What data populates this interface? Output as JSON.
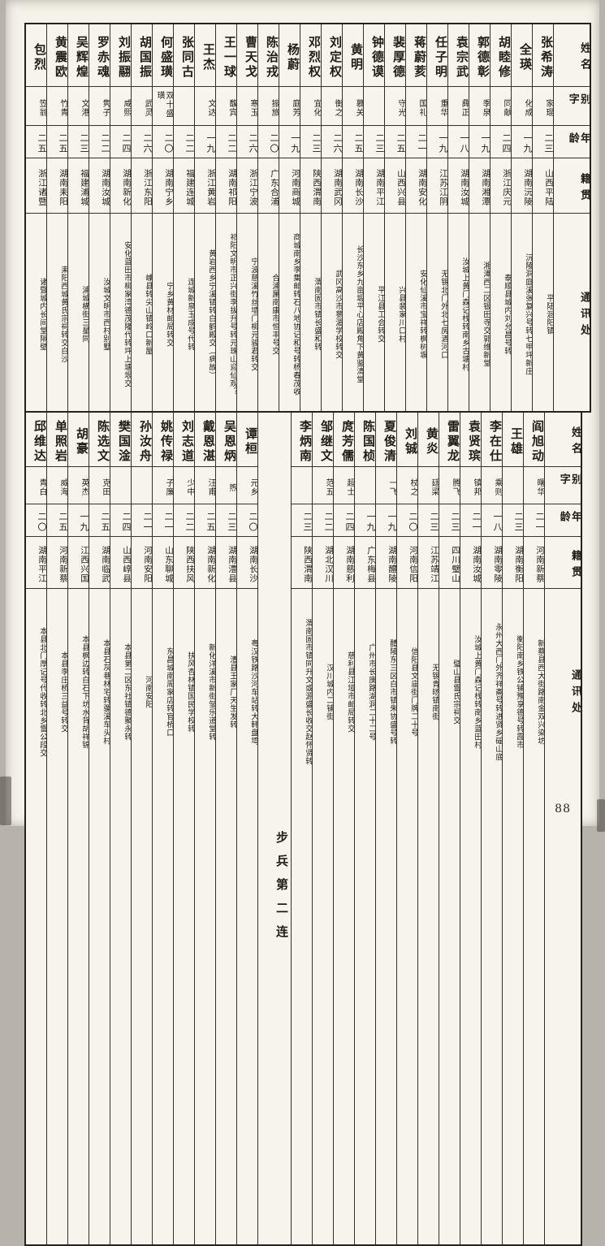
{
  "page_number": "88",
  "headers": {
    "name": "姓名",
    "courtesy": "别字",
    "age": "年龄",
    "native": "籍贯",
    "address": "通讯处"
  },
  "company_divider_label": "步兵第二连",
  "colors": {
    "paper": "#f5f2e9",
    "ink": "#211d16",
    "rule": "#35302a"
  },
  "tables": [
    {
      "id": "top-roster",
      "people": [
        {
          "name": "张希涛",
          "courtesy": "家琨",
          "age": "二三",
          "native": "山西平陆",
          "address": "平陆洄阳镇"
        },
        {
          "name": "全瑛",
          "courtesy": "化成",
          "age": "一九",
          "native": "湖南沅陵",
          "address": "沅陵洞庭溪张复兴号转七甲坪新庄"
        },
        {
          "name": "胡睦修",
          "courtesy": "同献",
          "age": "二四",
          "native": "浙江庆元",
          "address": "泰顺县城内刘允昌号转"
        },
        {
          "name": "郭德彰",
          "courtesy": "季泉",
          "age": "一九",
          "native": "湖南湘潭",
          "address": "湘潭西二区银田寺交郭维新堂"
        },
        {
          "name": "袁宗武",
          "courtesy": "彝正",
          "age": "一八",
          "native": "湖南汝城",
          "address": "汝城上黄门森记栈转南乡古塘村"
        },
        {
          "name": "任子明",
          "courtesy": "重华",
          "age": "一九",
          "native": "江苏江阴",
          "address": "无锡北门外北七房酒河口"
        },
        {
          "name": "蒋蔚荄",
          "courtesy": "国礼",
          "age": "二一",
          "native": "湖南安化",
          "address": "安化仙溪市宝祥转枫树塀"
        },
        {
          "name": "裴厚德",
          "courtesy": "守光",
          "age": "二五",
          "native": "山西兴县",
          "address": "兴县裴家川口村"
        },
        {
          "name": "钟德谟",
          "courtesy": "",
          "age": "二三",
          "native": "湖南平江",
          "address": "平江县工会转交"
        },
        {
          "name": "黄明",
          "courtesy": "慕关",
          "age": "二五",
          "native": "湖南长沙",
          "address": "长沙东乡九亩塅平心店殿角下黄鉴清堂"
        },
        {
          "name": "刘定权",
          "courtesy": "衡之",
          "age": "二六",
          "native": "湖南武冈",
          "address": "武冈高沙市蓼湄学校转交"
        },
        {
          "name": "邓烈权",
          "courtesy": "宜化",
          "age": "二三",
          "native": "陕西渭南",
          "address": "渭南固市镇长盛和转"
        },
        {
          "name": "杨蔚",
          "courtesy": "庭芳",
          "age": "一九",
          "native": "河南商城",
          "address": "商城南乡李集邮转石八地协记和号转杨春茂收"
        },
        {
          "name": "陈治戎",
          "courtesy": "振旅",
          "age": "二〇",
          "native": "广东合浦",
          "address": "合浦属南康市恒丰号交"
        },
        {
          "name": "曹天戈",
          "courtesy": "寒玉",
          "age": "二六",
          "native": "浙江宁波",
          "address": "宁波慈溪竹丝墙门柳元骏君转交"
        },
        {
          "name": "王一球",
          "courtesy": "馥宾",
          "age": "二二",
          "native": "湖南祁阳",
          "address": "祁阳文明市正兴街李拔升号转元珠山迎仙观？"
        },
        {
          "name": "王杰",
          "courtesy": "文达",
          "age": "一九",
          "native": "浙江黄岩",
          "address": "黄岩西乡宁溪镇转白鹤殿交（病故）"
        },
        {
          "name": "张同古",
          "courtesy": "",
          "age": "二二",
          "native": "福建连城",
          "address": "连城新泉玉成号代转"
        },
        {
          "name": "何盛璜",
          "courtesy": "双十盛璜",
          "age": "二〇",
          "native": "湖南宁乡",
          "address": "宁乡黄材邮局转交"
        },
        {
          "name": "胡国振",
          "courtesy": "武灵",
          "age": "二六",
          "native": "浙江东阳",
          "address": "嵊县转尖山镇岭口新屋"
        },
        {
          "name": "刘振翮",
          "courtesy": "咸熙",
          "age": "二四",
          "native": "湖南新化",
          "address": "安化蓝田市柳家湾德茂隆代转坪上塘垠交"
        },
        {
          "name": "罗赤魂",
          "courtesy": "隽子",
          "age": "二二",
          "native": "湖南汝城",
          "address": "汝城文明市西村别墅"
        },
        {
          "name": "吴辉煌",
          "courtesy": "文港",
          "age": "二三",
          "native": "福建浦城",
          "address": "浦城横街三星同"
        },
        {
          "name": "黄震欧",
          "courtesy": "竹青",
          "age": "二五",
          "native": "湖南耒阳",
          "address": "耒阳西城黄氏宗祠转交白沙"
        },
        {
          "name": "包烈",
          "courtesy": "笠翁",
          "age": "二五",
          "native": "浙江诸暨",
          "address": "诸暨城内长间堂隔壁"
        }
      ]
    },
    {
      "id": "bottom-roster",
      "people": [
        {
          "name": "阎旭动",
          "courtesy": "曙华",
          "age": "二一",
          "native": "河南新蔡",
          "address": "新蔡县西大街路南金双兴染坊"
        },
        {
          "name": "王雄",
          "courtesy": "",
          "age": "二三",
          "native": "湖南衡阳",
          "address": "衡阳南乡铁公铺豫享德号转霞市"
        },
        {
          "name": "李在仕",
          "courtesy": "乘则",
          "age": "一八",
          "native": "湖南零陵",
          "address": "永州大西门外齐祥斋号转进贤乡磘山底"
        },
        {
          "name": "袁贤瑸",
          "courtesy": "镇邦",
          "age": "二一",
          "native": "湖南汝城",
          "address": "汝城上黄门森记栈转南乡蓝田村"
        },
        {
          "name": "雷翼龙",
          "courtesy": "腾飞",
          "age": "二三",
          "native": "四川璧山",
          "address": "璧山县雷氏宗祠交"
        },
        {
          "name": "黄炎",
          "courtesy": "廷梁",
          "age": "二三",
          "native": "江苏靖江",
          "address": "无锡青旸镇南街"
        },
        {
          "name": "刘铖",
          "courtesy": "杖之",
          "age": "二〇",
          "native": "河南信阳",
          "address": "信阳县文庙街门牌二十号"
        },
        {
          "name": "夏俊清",
          "courtesy": "一飞",
          "age": "一九",
          "native": "湖南醴陵",
          "address": "醴陵东三区白市镇朱协盛号转"
        },
        {
          "name": "陈国桢",
          "courtesy": "",
          "age": "一九",
          "native": "广东梅县",
          "address": "广州市长庚路湖洞二十二号"
        },
        {
          "name": "庹芳儒",
          "courtesy": "超士",
          "age": "二四",
          "native": "湖南慈利",
          "address": "慈利县江垭市邮局转交"
        },
        {
          "name": "邹继文",
          "courtesy": "范五",
          "age": "二二",
          "native": "湖北汉川",
          "address": "汉川城内二铺街"
        },
        {
          "name": "李炳南",
          "courtesy": "",
          "age": "二三",
          "native": "陕西渭南",
          "address": "渭南固市镇同升文或源盛长收交赵怀贤转"
        },
        {
          "divider": true
        },
        {
          "name": "谭桓",
          "courtesy": "元乡",
          "age": "二〇",
          "native": "湖南长沙",
          "address": "粤汉铁路沙河车站转大韩盘塆"
        },
        {
          "name": "吴恩炳",
          "courtesy": "煦",
          "age": "二三",
          "native": "湖南澧县",
          "address": "澧县王家厂天生发转"
        },
        {
          "name": "戴恩湛",
          "courtesy": "汪甫",
          "age": "二五",
          "native": "湖南新化",
          "address": "新化洋溪市新街邹乐道堂转"
        },
        {
          "name": "刘志道",
          "courtesy": "少中",
          "age": "二二",
          "native": "陕西扶风",
          "address": "扶风杏林镇国民学校转"
        },
        {
          "name": "姚传禄",
          "courtesy": "子廉",
          "age": "二一",
          "native": "山东聊城",
          "address": "东昌城南周家店转官桥口"
        },
        {
          "name": "孙汝舟",
          "courtesy": "",
          "age": "二一",
          "native": "河南安阳",
          "address": "河南安阳"
        },
        {
          "name": "樊国淦",
          "courtesy": "",
          "age": "二四",
          "native": "山西崞县",
          "address": "本县第二区东社镇德聚永转"
        },
        {
          "name": "陈选文",
          "courtesy": "克田",
          "age": "二五",
          "native": "湖南临武",
          "address": "本县石灰巷林宅转骡溪车头村"
        },
        {
          "name": "胡豪",
          "courtesy": "英杰",
          "age": "一九",
          "native": "江西兴国",
          "address": "本县枫边转白石下坊水背胡祥锦"
        },
        {
          "name": "单照岩",
          "courtesy": "威海",
          "age": "二五",
          "native": "河南新蔡",
          "address": "本县李庄桥三益号转交"
        },
        {
          "name": "邱维达",
          "courtesy": "青白",
          "age": "二〇",
          "native": "湖南平江",
          "address": "本县北门厚记号代收转北乡雷公段交"
        }
      ]
    }
  ]
}
